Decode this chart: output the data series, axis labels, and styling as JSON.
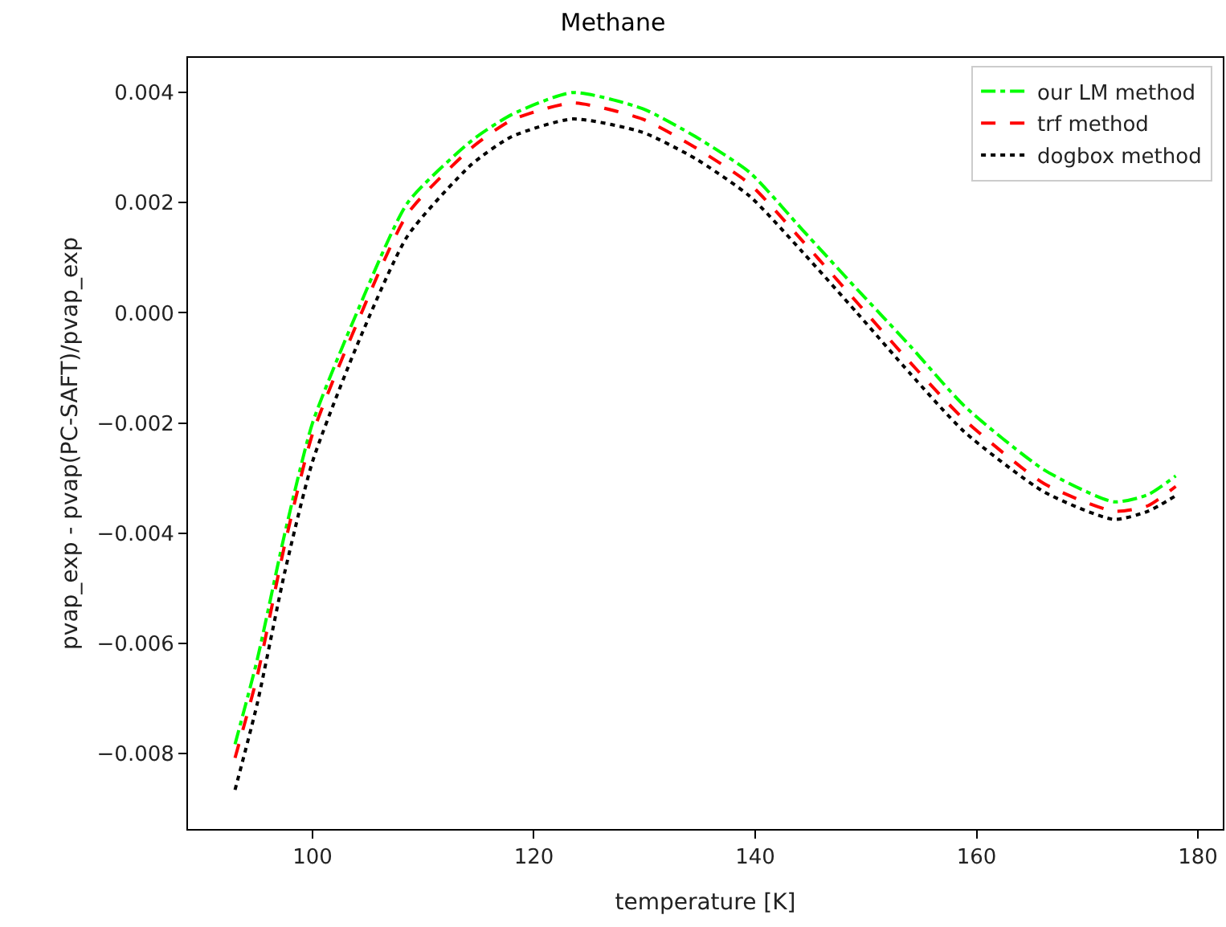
{
  "chart_data": {
    "type": "line",
    "title": "Methane",
    "xlabel": "temperature [K]",
    "ylabel": "pvap_exp - pvap(PC-SAFT)/pvap_exp",
    "x": [
      93,
      95,
      97.5,
      100,
      104,
      108.6,
      114.4,
      118,
      123.5,
      129.8,
      134.6,
      139.5,
      144.3,
      149.2,
      154,
      158.9,
      166.1,
      172.4,
      175.5,
      178
    ],
    "series": [
      {
        "name": "our LM method",
        "color": "#00ff00",
        "line_style": "dashdot",
        "values": [
          -0.00783,
          -0.0063,
          -0.004,
          -0.002,
          0.0,
          0.002,
          0.00313,
          0.0036,
          0.004,
          0.00371,
          0.0032,
          0.00255,
          0.0015,
          0.00043,
          -0.0006,
          -0.00169,
          -0.00285,
          -0.00343,
          -0.0033,
          -0.00296
        ]
      },
      {
        "name": "trf method",
        "color": "#ff0000",
        "line_style": "dashed",
        "values": [
          -0.00808,
          -0.0066,
          -0.0042,
          -0.0022,
          -0.0002,
          0.0018,
          0.003,
          0.0035,
          0.00381,
          0.00352,
          0.003,
          0.00234,
          0.0013,
          0.00019,
          -0.0009,
          -0.00194,
          -0.0031,
          -0.0036,
          -0.0035,
          -0.00315
        ]
      },
      {
        "name": "dogbox method",
        "color": "#000000",
        "line_style": "dotted",
        "values": [
          -0.00866,
          -0.0071,
          -0.0047,
          -0.0027,
          -0.0006,
          0.0014,
          0.0027,
          0.0032,
          0.00352,
          0.00328,
          0.0028,
          0.00212,
          0.0011,
          0.0,
          -0.0011,
          -0.00216,
          -0.00325,
          -0.00375,
          -0.0036,
          -0.00332
        ]
      }
    ],
    "xlim": [
      88.75,
      182.25
    ],
    "xticks": [
      100,
      120,
      140,
      160,
      180
    ],
    "ylim": [
      -0.00937,
      0.00463
    ],
    "yticks": [
      {
        "value": -0.008,
        "label": "−0.008"
      },
      {
        "value": -0.006,
        "label": "−0.006"
      },
      {
        "value": -0.004,
        "label": "−0.004"
      },
      {
        "value": -0.002,
        "label": "−0.002"
      },
      {
        "value": 0.0,
        "label": "0.000"
      },
      {
        "value": 0.002,
        "label": "0.002"
      },
      {
        "value": 0.004,
        "label": "0.004"
      }
    ],
    "legend": "top right",
    "marker": "none"
  }
}
